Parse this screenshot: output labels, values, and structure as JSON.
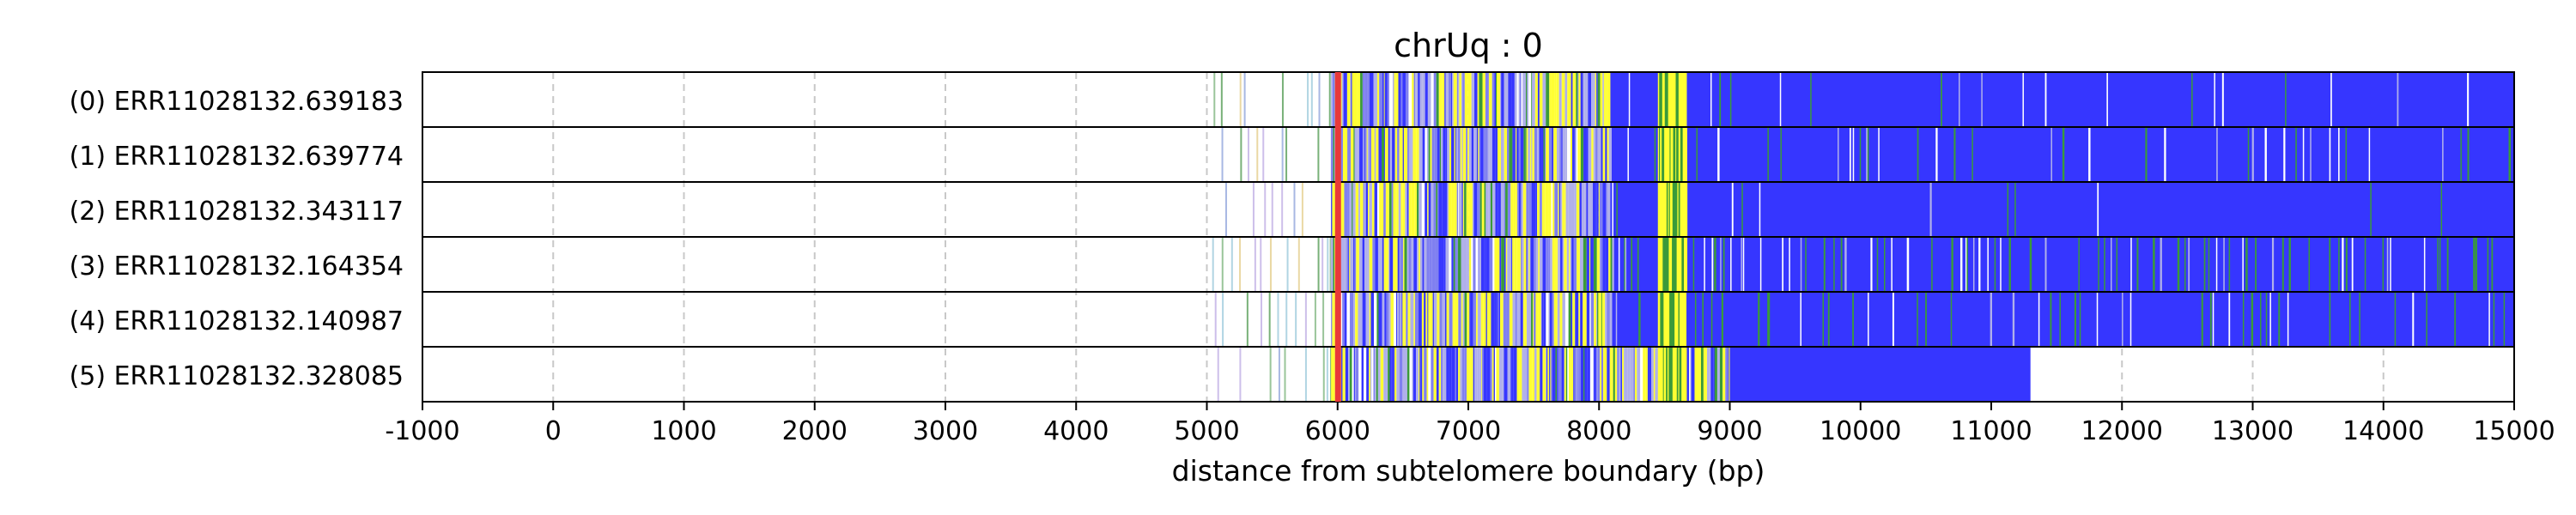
{
  "chart_data": {
    "type": "heatmap",
    "title": "chrUq : 0",
    "xlabel": "distance from subtelomere boundary (bp)",
    "ylabel": "",
    "xlim": [
      -1000,
      15000
    ],
    "xticks": [
      -1000,
      0,
      1000,
      2000,
      3000,
      4000,
      5000,
      6000,
      7000,
      8000,
      9000,
      10000,
      11000,
      12000,
      13000,
      14000,
      15000
    ],
    "xtick_labels": [
      "-1000",
      "0",
      "1000",
      "2000",
      "3000",
      "4000",
      "5000",
      "6000",
      "7000",
      "8000",
      "9000",
      "10000",
      "11000",
      "12000",
      "13000",
      "14000",
      "15000"
    ],
    "grid": "vertical dashed at x ticks",
    "boundary_marker": {
      "x": 6000,
      "color": "#e8393a"
    },
    "colors": {
      "repeat": "#3636ff",
      "variant_green": "#3a9a3a",
      "variant_yellow": "#ffff33",
      "variant_lavender": "#b0b0ea",
      "variant_white": "#ffffff",
      "grid": "#c8c8c8"
    },
    "reads": [
      {
        "label": "(0) ERR11028132.639183",
        "read_start": 5000,
        "read_end": 15000,
        "dense_start": 5950,
        "repeat_start": 8100,
        "green_density": 0.03,
        "white_density": 0.05
      },
      {
        "label": "(1) ERR11028132.639774",
        "read_start": 5000,
        "read_end": 15000,
        "dense_start": 5950,
        "repeat_start": 8100,
        "green_density": 0.12,
        "white_density": 0.1
      },
      {
        "label": "(2) ERR11028132.343117",
        "read_start": 5000,
        "read_end": 15000,
        "dense_start": 5950,
        "repeat_start": 8100,
        "green_density": 0.02,
        "white_density": 0.03
      },
      {
        "label": "(3) ERR11028132.164354",
        "read_start": 5000,
        "read_end": 15000,
        "dense_start": 5950,
        "repeat_start": 8100,
        "green_density": 0.2,
        "white_density": 0.2
      },
      {
        "label": "(4) ERR11028132.140987",
        "read_start": 5000,
        "read_end": 15000,
        "dense_start": 5950,
        "repeat_start": 8100,
        "green_density": 0.12,
        "white_density": 0.08
      },
      {
        "label": "(5) ERR11028132.328085",
        "read_start": 5000,
        "read_end": 11300,
        "dense_start": 5950,
        "repeat_start": 9000,
        "green_density": 0.01,
        "white_density": 0.02
      }
    ]
  }
}
